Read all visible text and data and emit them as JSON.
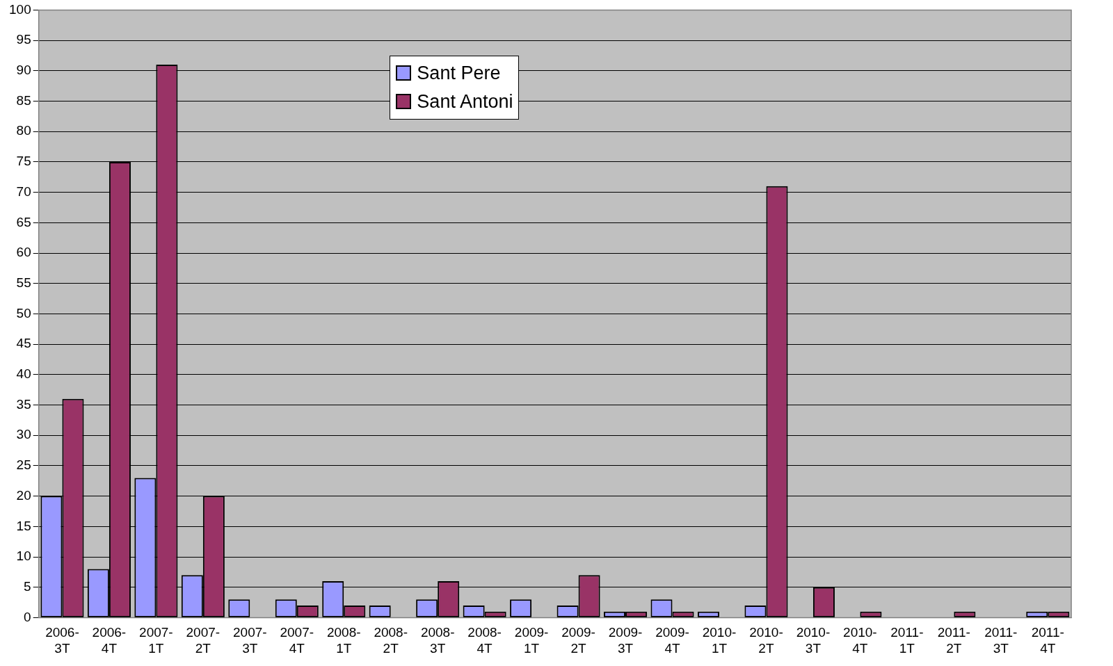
{
  "chart_data": {
    "type": "bar",
    "categories": [
      "2006-3T",
      "2006-4T",
      "2007-1T",
      "2007-2T",
      "2007-3T",
      "2007-4T",
      "2008-1T",
      "2008-2T",
      "2008-3T",
      "2008-4T",
      "2009-1T",
      "2009-2T",
      "2009-3T",
      "2009-4T",
      "2010-1T",
      "2010-2T",
      "2010-3T",
      "2010-4T",
      "2011-1T",
      "2011-2T",
      "2011-3T",
      "2011-4T"
    ],
    "series": [
      {
        "name": "Sant Pere",
        "color": "#9999ff",
        "values": [
          20,
          8,
          23,
          7,
          3,
          3,
          6,
          2,
          3,
          2,
          3,
          2,
          1,
          3,
          1,
          2,
          0,
          0,
          0,
          0,
          0,
          1
        ]
      },
      {
        "name": "Sant Antoni",
        "color": "#993366",
        "values": [
          36,
          75,
          91,
          20,
          0,
          2,
          2,
          0,
          6,
          1,
          0,
          7,
          1,
          1,
          0,
          71,
          5,
          1,
          0,
          1,
          0,
          1
        ]
      }
    ],
    "ylim": [
      0,
      100
    ],
    "yticks": [
      0,
      5,
      10,
      15,
      20,
      25,
      30,
      35,
      40,
      45,
      50,
      55,
      60,
      65,
      70,
      75,
      80,
      85,
      90,
      95,
      100
    ],
    "grid": "y",
    "legend": "top"
  }
}
